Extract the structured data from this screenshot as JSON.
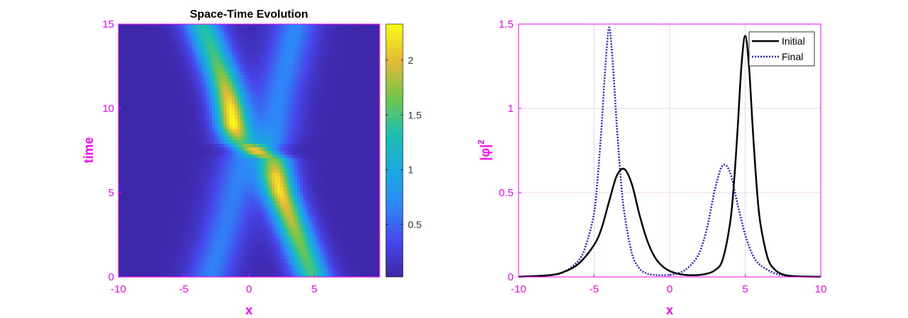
{
  "chart_data": [
    {
      "type": "heatmap",
      "title": "Space-Time Evolution",
      "xlabel": "x",
      "ylabel": "time",
      "xlim": [
        -10,
        10
      ],
      "ylim": [
        0,
        15
      ],
      "x_ticks": [
        -10,
        -5,
        0,
        5
      ],
      "x_tick_labels": [
        "-10",
        "-5",
        "0",
        "5"
      ],
      "y_ticks": [
        0,
        5,
        10,
        15
      ],
      "y_tick_labels": [
        "0",
        "5",
        "10",
        "15"
      ],
      "colorbar": {
        "range": [
          0.02,
          2.33
        ],
        "ticks": [
          0.5,
          1,
          1.5,
          2
        ],
        "tick_labels": [
          "0.5",
          "1",
          "1.5",
          "2"
        ],
        "colormap": "parula"
      },
      "ridges": [
        {
          "t": [
            0,
            2,
            4,
            5,
            6,
            7,
            8,
            9,
            10,
            11,
            12,
            13,
            14,
            15
          ],
          "x": [
            4.9,
            3.9,
            2.9,
            2.4,
            2.1,
            1.9,
            -0.8,
            -1.2,
            -1.4,
            -1.7,
            -2.1,
            -2.6,
            -3.1,
            -3.6
          ],
          "peak": [
            1.45,
            1.65,
            1.95,
            2.15,
            2.1,
            1.55,
            1.35,
            2.3,
            2.2,
            1.95,
            1.7,
            1.5,
            1.4,
            1.3
          ]
        },
        {
          "t": [
            0,
            2,
            4,
            6,
            7,
            8,
            9,
            10,
            11,
            12,
            13,
            14,
            15
          ],
          "x": [
            -3.0,
            -2.2,
            -1.5,
            -0.9,
            -0.6,
            1.6,
            2.0,
            2.2,
            2.4,
            2.7,
            3.0,
            3.3,
            3.6
          ],
          "peak": [
            0.64,
            0.62,
            0.6,
            0.6,
            0.55,
            0.75,
            0.65,
            0.64,
            0.64,
            0.65,
            0.66,
            0.67,
            0.67
          ]
        }
      ]
    },
    {
      "type": "line",
      "xlabel": "x",
      "ylabel": "|φ|",
      "ylabel_sup": "2",
      "xlim": [
        -10,
        10
      ],
      "ylim": [
        0,
        1.5
      ],
      "x_ticks": [
        -10,
        -5,
        0,
        5,
        10
      ],
      "x_tick_labels": [
        "-10",
        "-5",
        "0",
        "5",
        "10"
      ],
      "y_ticks": [
        0,
        0.5,
        1,
        1.5
      ],
      "y_tick_labels": [
        "0",
        "0.5",
        "1",
        "1.5"
      ],
      "grid": true,
      "legend_position": "top-right",
      "series": [
        {
          "name": "Initial",
          "color": "#000000",
          "style": "solid",
          "x": [
            -10,
            -8,
            -7,
            -6,
            -5,
            -4.5,
            -4,
            -3.5,
            -3,
            -2.5,
            -2,
            -1.5,
            -1,
            -0.5,
            0,
            0.5,
            1,
            1.5,
            2,
            2.5,
            3,
            3.5,
            4,
            4.25,
            4.5,
            4.75,
            5,
            5.25,
            5.5,
            5.75,
            6,
            6.5,
            7,
            7.5,
            8,
            9,
            10
          ],
          "y": [
            0.001,
            0.01,
            0.03,
            0.08,
            0.19,
            0.29,
            0.45,
            0.6,
            0.64,
            0.55,
            0.37,
            0.22,
            0.12,
            0.065,
            0.035,
            0.02,
            0.012,
            0.01,
            0.012,
            0.02,
            0.04,
            0.1,
            0.32,
            0.55,
            0.88,
            1.25,
            1.43,
            1.25,
            0.88,
            0.55,
            0.32,
            0.11,
            0.04,
            0.015,
            0.006,
            0.002,
            0.001
          ]
        },
        {
          "name": "Final",
          "color": "#1f1fcc",
          "style": "dotted",
          "x": [
            -10,
            -8,
            -7,
            -6,
            -5.5,
            -5,
            -4.75,
            -4.5,
            -4.25,
            -4,
            -3.75,
            -3.5,
            -3.25,
            -3,
            -2.5,
            -2,
            -1.5,
            -1,
            -0.5,
            0,
            0.5,
            1,
            1.5,
            2,
            2.5,
            3,
            3.5,
            4,
            4.5,
            5,
            5.5,
            6,
            7,
            8,
            10
          ],
          "y": [
            0.001,
            0.01,
            0.03,
            0.1,
            0.2,
            0.38,
            0.6,
            0.9,
            1.25,
            1.48,
            1.25,
            0.9,
            0.6,
            0.38,
            0.14,
            0.05,
            0.02,
            0.012,
            0.01,
            0.012,
            0.02,
            0.04,
            0.08,
            0.15,
            0.3,
            0.52,
            0.66,
            0.62,
            0.43,
            0.25,
            0.13,
            0.07,
            0.02,
            0.006,
            0.001
          ]
        }
      ]
    }
  ]
}
